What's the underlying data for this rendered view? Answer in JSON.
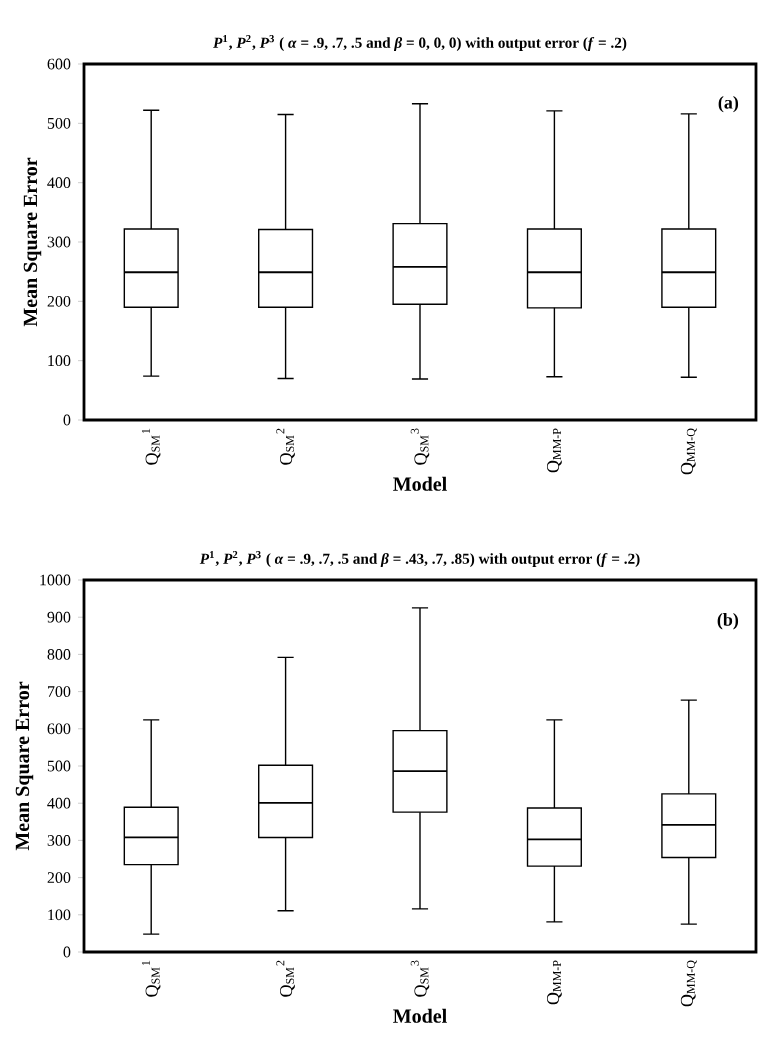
{
  "chart_data": [
    {
      "type": "box",
      "title": "*P*$^{1}$, *P*$^{2}$, *P*$^{3}$ ( *α* = .9, .7, .5 and *β* = 0, 0, 0) with output error (*f* = .2)",
      "xlabel": "Model",
      "ylabel": "Mean Square Error",
      "annotations": [
        "(a)"
      ],
      "categories": [
        "Q$_{SM}$$^{1}$",
        "Q$_{SM}$$^{2}$",
        "Q$_{SM}$$^{3}$",
        "Q$_{MM-P}$",
        "Q$_{MM-Q}$"
      ],
      "boxes": [
        {
          "low": 74,
          "q1": 190,
          "median": 249,
          "q3": 322,
          "high": 522
        },
        {
          "low": 70,
          "q1": 190,
          "median": 249,
          "q3": 321,
          "high": 515
        },
        {
          "low": 69,
          "q1": 195,
          "median": 258,
          "q3": 331,
          "high": 533
        },
        {
          "low": 73,
          "q1": 189,
          "median": 249,
          "q3": 322,
          "high": 521
        },
        {
          "low": 72,
          "q1": 190,
          "median": 249,
          "q3": 322,
          "high": 516
        }
      ],
      "ylim": [
        0,
        600
      ],
      "yticks": [
        0,
        100,
        200,
        300,
        400,
        500,
        600
      ]
    },
    {
      "type": "box",
      "title": "*P*$^{1}$, *P*$^{2}$, *P*$^{3}$ ( *α* = .9, .7, .5 and *β* = .43, .7, .85) with output error (*f* = .2)",
      "xlabel": "Model",
      "ylabel": "Mean Square Error",
      "annotations": [
        "(b)"
      ],
      "categories": [
        "Q$_{SM}$$^{1}$",
        "Q$_{SM}$$^{2}$",
        "Q$_{SM}$$^{3}$",
        "Q$_{MM-P}$",
        "Q$_{MM-Q}$"
      ],
      "boxes": [
        {
          "low": 48,
          "q1": 235,
          "median": 308,
          "q3": 389,
          "high": 624
        },
        {
          "low": 111,
          "q1": 308,
          "median": 401,
          "q3": 502,
          "high": 792
        },
        {
          "low": 116,
          "q1": 376,
          "median": 486,
          "q3": 595,
          "high": 925
        },
        {
          "low": 81,
          "q1": 231,
          "median": 303,
          "q3": 387,
          "high": 624
        },
        {
          "low": 75,
          "q1": 254,
          "median": 342,
          "q3": 425,
          "high": 677
        }
      ],
      "ylim": [
        0,
        1000
      ],
      "yticks": [
        0,
        100,
        200,
        300,
        400,
        500,
        600,
        700,
        800,
        900,
        1000
      ]
    }
  ]
}
